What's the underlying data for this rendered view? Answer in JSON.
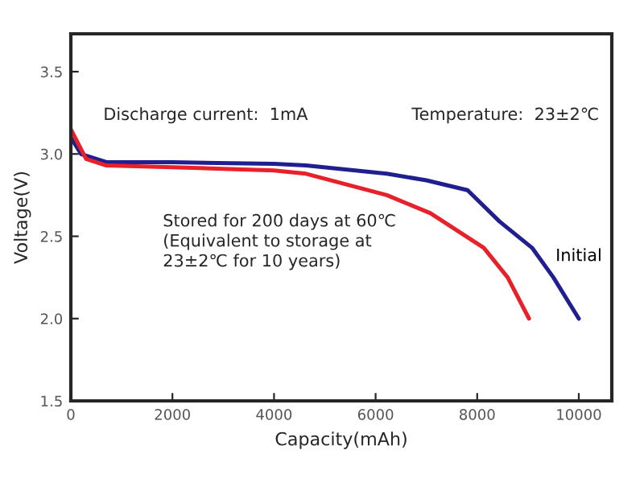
{
  "chart_data": {
    "type": "line",
    "xlabel": "Capacity(mAh)",
    "ylabel": "Voltage(V)",
    "xlim": [
      0,
      10650
    ],
    "ylim": [
      1.5,
      3.73
    ],
    "xticks": [
      0,
      2000,
      4000,
      6000,
      8000,
      10000
    ],
    "yticks": [
      1.5,
      {
        "value": 2,
        "label": "2.0"
      },
      2.5,
      {
        "value": 3,
        "label": "3.0"
      },
      3.5
    ],
    "grid": false,
    "legend": false,
    "marker": "none",
    "line_style": "solid",
    "series": [
      {
        "name": "Initial",
        "color": "#1f1f8f",
        "x": [
          0,
          200,
          700,
          2000,
          4000,
          4630,
          6220,
          7000,
          7810,
          8440,
          9080,
          9500,
          10000
        ],
        "values": [
          3.1,
          3.0,
          2.95,
          2.95,
          2.94,
          2.93,
          2.88,
          2.84,
          2.78,
          2.59,
          2.43,
          2.25,
          2.0
        ]
      },
      {
        "color": "#e8202a",
        "x": [
          0,
          300,
          700,
          2000,
          3000,
          4000,
          4630,
          6220,
          7080,
          8130,
          8600,
          9020
        ],
        "values": [
          3.15,
          2.97,
          2.93,
          2.92,
          2.91,
          2.9,
          2.88,
          2.75,
          2.64,
          2.43,
          2.25,
          2.0
        ]
      }
    ],
    "annotations": [
      "Discharge current:  1mA",
      "Temperature:  23±2℃",
      "Stored for 200 days at 60℃\n(Equivalent to storage at\n23±2℃ for 10 years)"
    ]
  }
}
